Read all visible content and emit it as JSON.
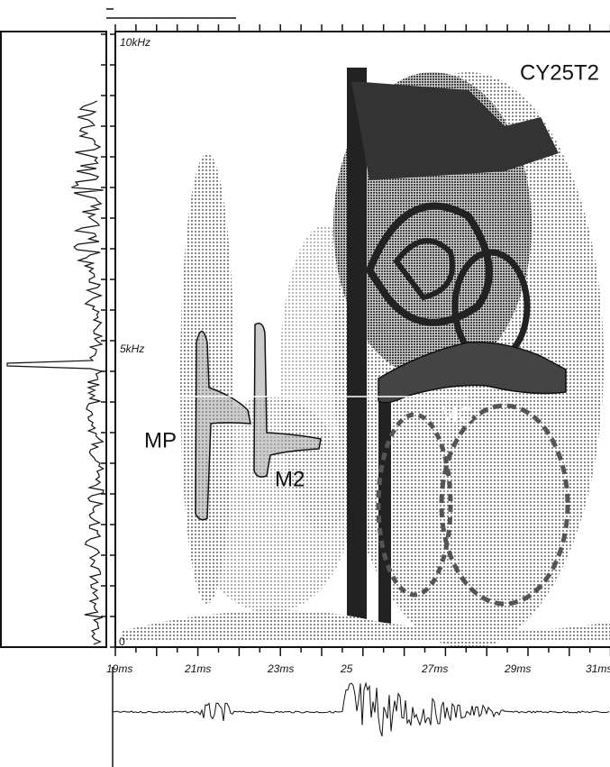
{
  "figure": {
    "title": "CY25T2",
    "y_labels": [
      "10kHz",
      "5kHz",
      "0"
    ],
    "x_labels": [
      "19ms",
      "21ms",
      "23ms",
      "25",
      "27ms",
      "29ms",
      "31ms"
    ],
    "annotations": [
      "MP",
      "M2",
      "MC"
    ]
  }
}
